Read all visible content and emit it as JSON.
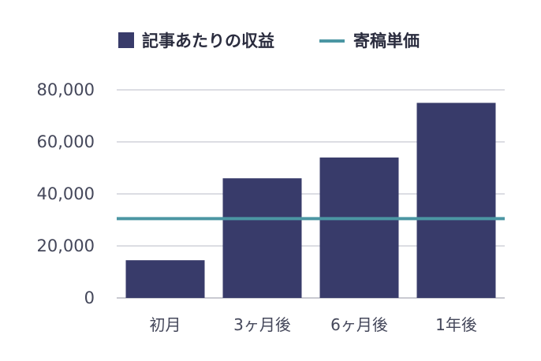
{
  "chart_data": {
    "type": "bar",
    "categories": [
      "初月",
      "3ヶ月後",
      "6ヶ月後",
      "1年後"
    ],
    "series": [
      {
        "name": "記事あたりの収益",
        "type": "bar",
        "color": "#383b6a",
        "values": [
          14500,
          46000,
          54000,
          75000
        ]
      },
      {
        "name": "寄稿単価",
        "type": "line",
        "color": "#4b96a3",
        "values": [
          30500,
          30500,
          30500,
          30500
        ]
      }
    ],
    "yticks": [
      "0",
      "20,000",
      "40,000",
      "60,000",
      "80,000"
    ],
    "ylim": [
      0,
      80000
    ],
    "grid": true,
    "legend": "top"
  }
}
